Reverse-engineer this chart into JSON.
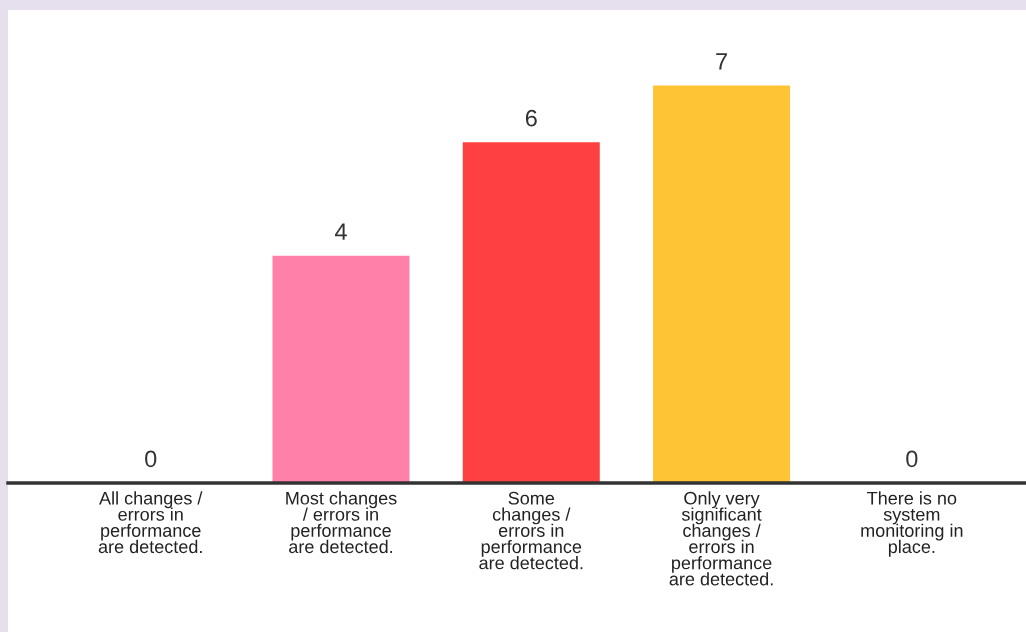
{
  "chart_data": {
    "type": "bar",
    "categories": [
      "All changes /\nerrors in\nperformance\nare detected.",
      "Most changes\n/ errors in\nperformance\nare detected.",
      "Some\nchanges /\nerrors in\nperformance\nare detected.",
      "Only very\nsignificant\nchanges /\nerrors in\nperformance\nare detected.",
      "There is no\nsystem\nmonitoring in\nplace."
    ],
    "values": [
      0,
      4,
      6,
      7,
      0
    ],
    "colors": [
      "#5a6ee6",
      "#ff80a8",
      "#ff4040",
      "#ffc435",
      "#2bb673"
    ],
    "data_labels": true,
    "grid": false,
    "legend": false
  }
}
